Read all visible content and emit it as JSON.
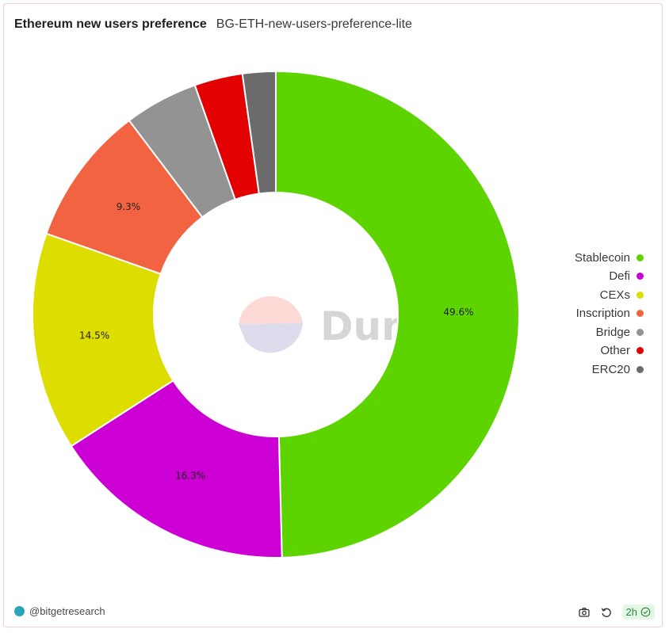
{
  "header": {
    "title": "Ethereum new users preference",
    "subtitle": "BG-ETH-new-users-preference-lite"
  },
  "watermark": {
    "text": "Dune"
  },
  "footer": {
    "author": "@bitgetresearch",
    "refresh_label": "2h"
  },
  "colors": {
    "Stablecoin": "#5dd400",
    "Defi": "#cc00d4",
    "CEXs": "#dddd00",
    "Inscription": "#f26441",
    "Bridge": "#939393",
    "Other": "#e30000",
    "ERC20": "#6b6b6b"
  },
  "chart_data": {
    "type": "pie",
    "donut": true,
    "title": "Ethereum new users preference",
    "legend_position": "right",
    "categories": [
      "Stablecoin",
      "Defi",
      "CEXs",
      "Inscription",
      "Bridge",
      "Other",
      "ERC20"
    ],
    "values": [
      49.6,
      16.3,
      14.5,
      9.3,
      4.9,
      3.2,
      2.2
    ],
    "labels": [
      "49.6%",
      "16.3%",
      "14.5%",
      "9.3%",
      "",
      "",
      ""
    ],
    "unit": "%"
  }
}
